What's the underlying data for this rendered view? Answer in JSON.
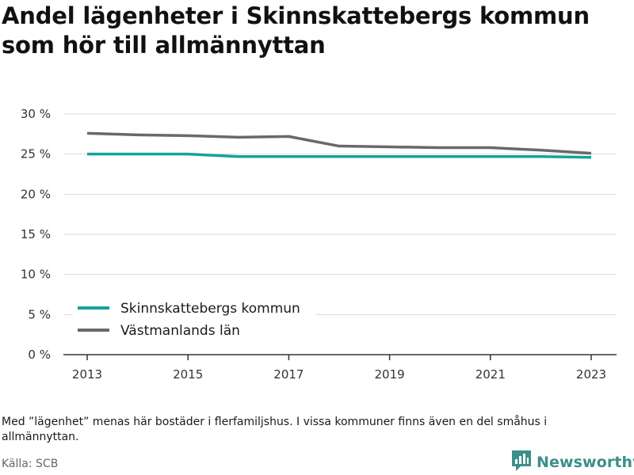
{
  "title": "Andel lägenheter i Skinnskattebergs kommun som hör till allmännyttan",
  "note": "Med ”lägenhet” menas här bostäder i flerfamiljshus. I vissa kommuner finns även en del småhus i allmännyttan.",
  "source": "Källa: SCB",
  "brand": {
    "name": "Newsworthy",
    "icon": "newsworthy-logo-icon",
    "color": "#3c8f8a"
  },
  "chart_data": {
    "type": "line",
    "x": [
      2013,
      2014,
      2015,
      2016,
      2017,
      2018,
      2019,
      2020,
      2021,
      2022,
      2023
    ],
    "xticks": [
      "2013",
      "2015",
      "2017",
      "2019",
      "2021",
      "2023"
    ],
    "ylim": [
      0,
      30
    ],
    "yticks": [
      "0 %",
      "5 %",
      "10 %",
      "15 %",
      "20 %",
      "25 %",
      "30 %"
    ],
    "grid": true,
    "legend_position": "bottom-left",
    "series": [
      {
        "name": "Skinnskattebergs kommun",
        "color": "#13a3a0",
        "values": [
          25.0,
          25.0,
          25.0,
          24.7,
          24.7,
          24.7,
          24.7,
          24.7,
          24.7,
          24.7,
          24.6
        ]
      },
      {
        "name": "Västmanlands län",
        "color": "#68686d",
        "values": [
          27.6,
          27.4,
          27.3,
          27.1,
          27.2,
          26.0,
          25.9,
          25.8,
          25.8,
          25.5,
          25.1
        ]
      }
    ]
  }
}
